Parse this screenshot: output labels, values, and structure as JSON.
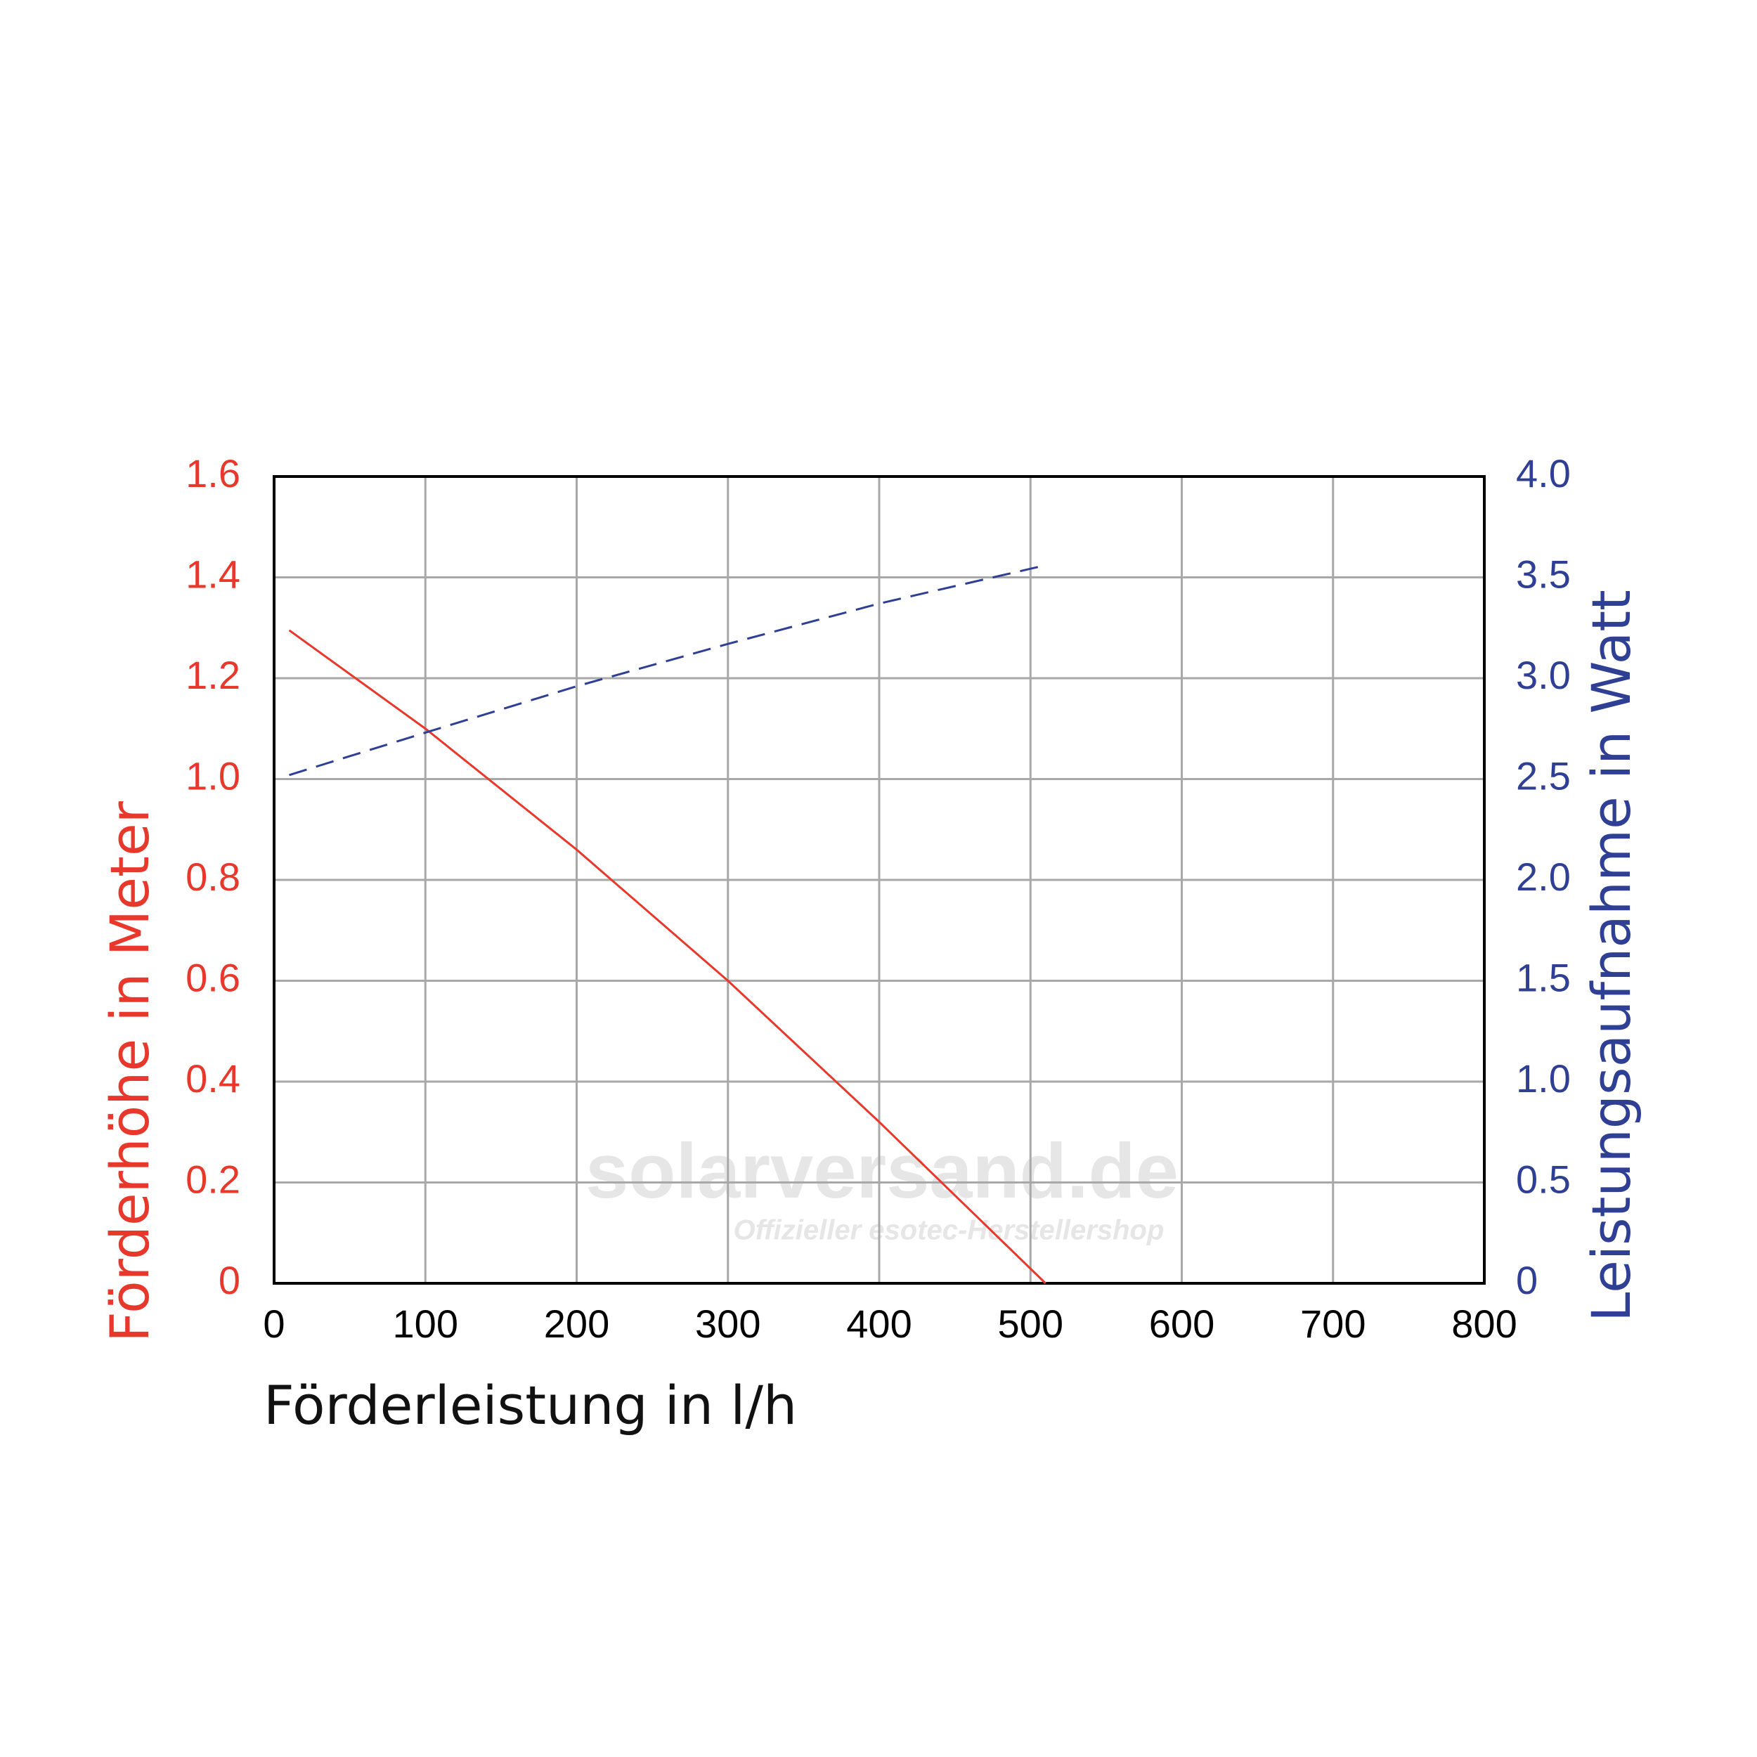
{
  "chart_data": {
    "type": "line",
    "x_label": "Förderleistung in l/h",
    "y_label": "Förderhöhe in Meter",
    "y2_label": "Leistungsaufnahme in Watt",
    "watermark": "solarversand.de",
    "watermark_subtitle": "Offizieller esotec-Herstellershop",
    "x": [
      10,
      100,
      200,
      300,
      400,
      510
    ],
    "series": [
      {
        "name": "Förderhöhe",
        "color": "#e8382b",
        "values": [
          1.295,
          1.1,
          0.86,
          0.6,
          0.32,
          0
        ],
        "dash": false
      },
      {
        "name": "Leistungsaufnahme",
        "color": "#2e3f94",
        "values": [
          2.52,
          2.73,
          2.96,
          3.17,
          3.37,
          3.56
        ],
        "axis": "y2",
        "dash": true
      }
    ],
    "xlim": [
      0,
      800
    ],
    "xticks": [
      0,
      100,
      200,
      300,
      400,
      500,
      600,
      700,
      800
    ],
    "ylim": [
      0,
      1.6
    ],
    "yticks": [
      0,
      0.2,
      0.4,
      0.6,
      0.8,
      {
        "value": 1,
        "label": "1.0"
      },
      1.2,
      1.4,
      1.6
    ],
    "y2lim": [
      0,
      4
    ],
    "y2ticks": [
      0,
      0.5,
      {
        "value": 1,
        "label": "1.0"
      },
      1.5,
      {
        "value": 2,
        "label": "2.0"
      },
      2.5,
      {
        "value": 3,
        "label": "3.0"
      },
      3.5,
      {
        "value": 4,
        "label": "4.0"
      }
    ],
    "grid": true
  }
}
